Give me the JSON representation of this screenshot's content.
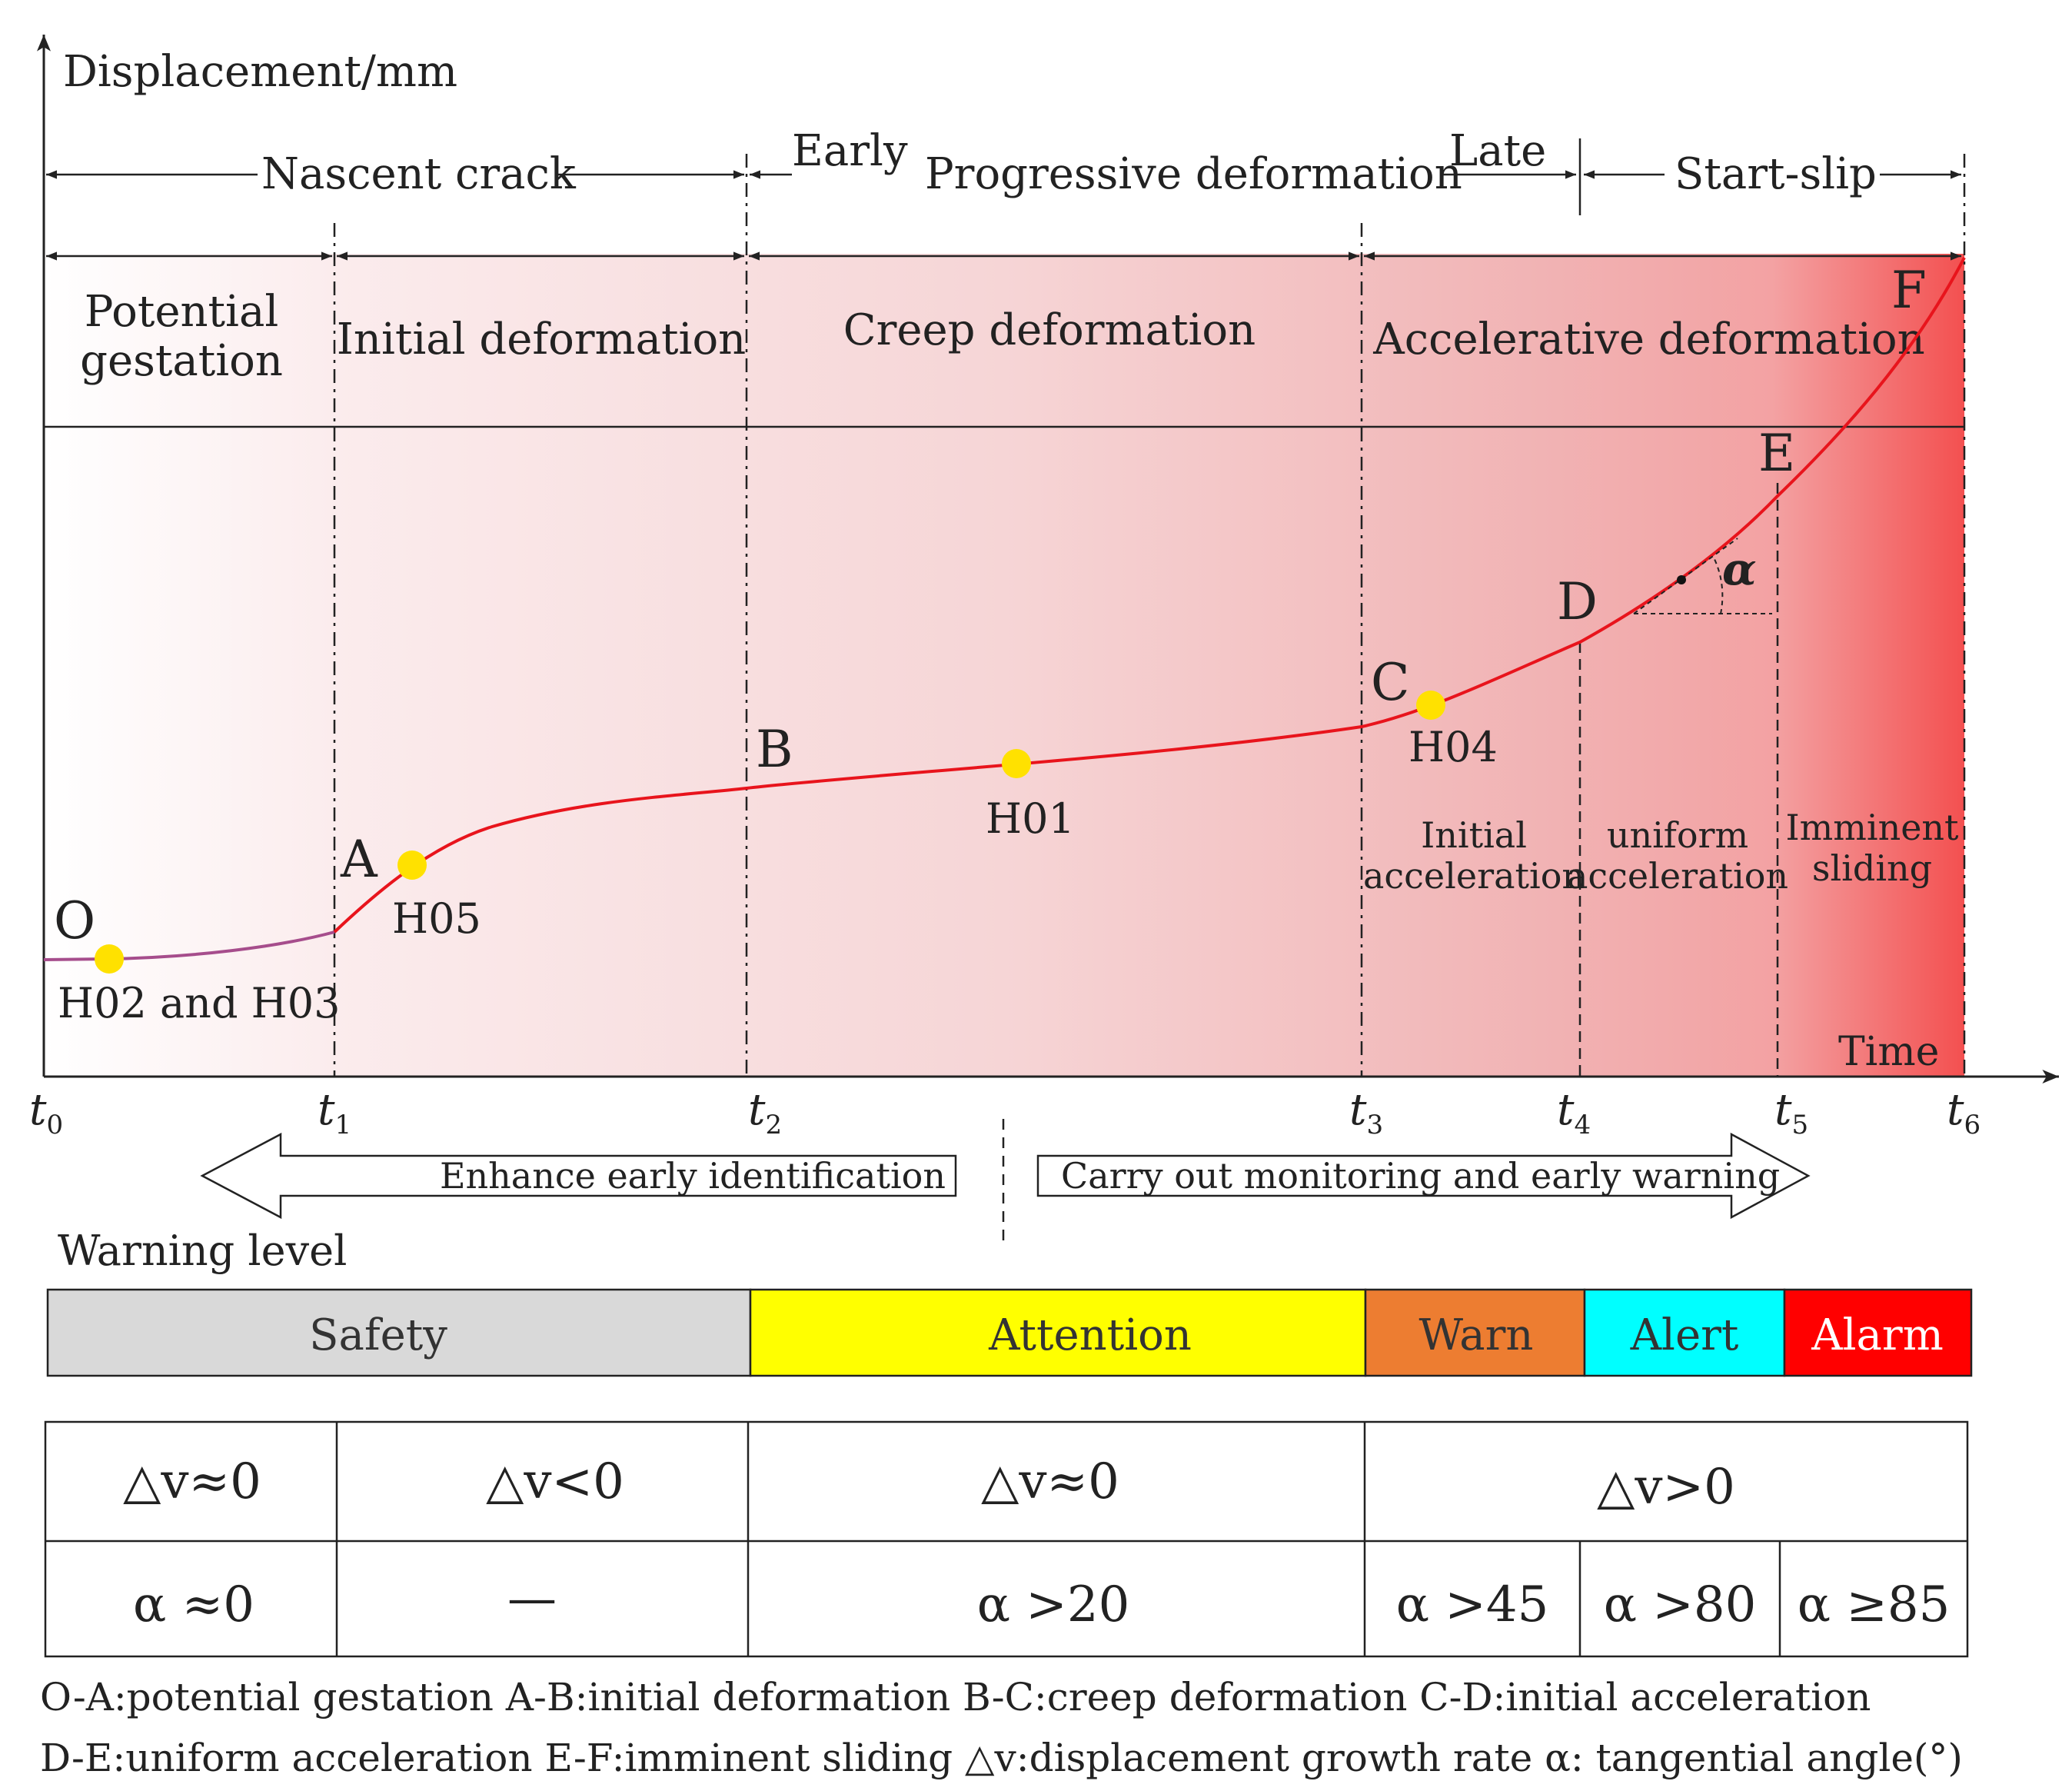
{
  "axes": {
    "ylabel": "Displacement/mm",
    "xlabel": "Time"
  },
  "time_ticks": [
    {
      "base": "t",
      "sub": "0"
    },
    {
      "base": "t",
      "sub": "1"
    },
    {
      "base": "t",
      "sub": "2"
    },
    {
      "base": "t",
      "sub": "3"
    },
    {
      "base": "t",
      "sub": "4"
    },
    {
      "base": "t",
      "sub": "5"
    },
    {
      "base": "t",
      "sub": "6"
    }
  ],
  "phases_top": {
    "nascent": "Nascent crack",
    "early": "Early",
    "progressive": "Progressive deformation",
    "late": "Late",
    "start_slip": "Start-slip"
  },
  "stages": {
    "potential_1": "Potential",
    "potential_2": "gestation",
    "initial": "Initial deformation",
    "creep": "Creep deformation",
    "accelerative": "Accelerative deformation"
  },
  "points": {
    "O": "O",
    "A": "A",
    "B": "B",
    "C": "C",
    "D": "D",
    "E": "E",
    "F": "F",
    "alpha": "α"
  },
  "monitors": {
    "h02_h03": "H02 and H03",
    "h05": "H05",
    "h01": "H01",
    "h04": "H04"
  },
  "sub_stages": {
    "initial_1": "Initial",
    "initial_2": "acceleration",
    "uniform_1": "uniform",
    "uniform_2": "acceleration",
    "imminent_1": "Imminent",
    "imminent_2": "sliding"
  },
  "arrows": {
    "left": "Enhance early identification",
    "right": "Carry out monitoring and early warning"
  },
  "warning": {
    "title": "Warning level",
    "levels": [
      {
        "label": "Safety",
        "color": "#d9d9d9"
      },
      {
        "label": "Attention",
        "color": "#ffff00"
      },
      {
        "label": "Warn",
        "color": "#ed7d31"
      },
      {
        "label": "Alert",
        "color": "#00ffff"
      },
      {
        "label": "Alarm",
        "color": "#ff0000"
      }
    ]
  },
  "criteria": {
    "dv": [
      "△v≈0",
      "△v<0",
      "△v≈0",
      "△v>0"
    ],
    "alpha": [
      "α ≈0",
      "—",
      "α >20",
      "α >45",
      "α >80",
      "α ≥85"
    ]
  },
  "legend": {
    "line1": "O-A:potential gestation  A-B:initial deformation  B-C:creep deformation  C-D:initial acceleration",
    "line2": "D-E:uniform acceleration  E-F:imminent sliding  △v:displacement growth rate  α: tangential angle(°)"
  },
  "colors": {
    "curve_early": "#a64d8c",
    "curve": "#e8141c",
    "marker": "#ffe100",
    "gradient_light": "#fdf3f3",
    "gradient_mid": "#f2b8b8",
    "gradient_end": "#f04c4c"
  }
}
